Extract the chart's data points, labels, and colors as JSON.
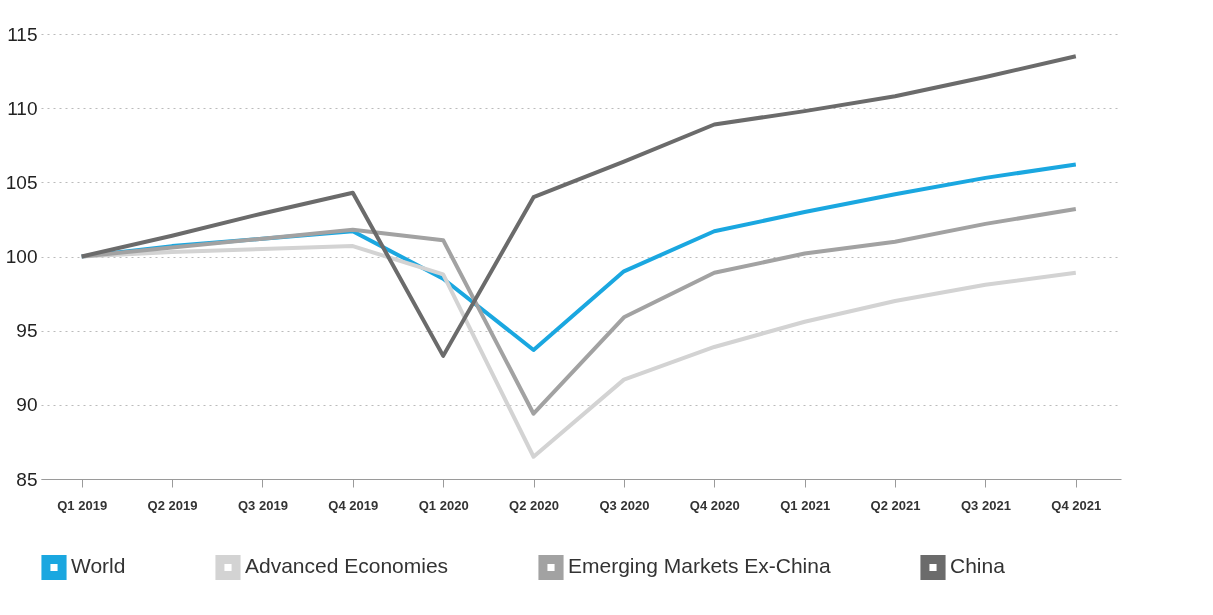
{
  "chart_data": {
    "type": "line",
    "categories": [
      "Q1 2019",
      "Q2 2019",
      "Q3 2019",
      "Q4 2019",
      "Q1 2020",
      "Q2 2020",
      "Q3 2020",
      "Q4 2020",
      "Q1 2021",
      "Q2 2021",
      "Q3 2021",
      "Q4 2021"
    ],
    "series": [
      {
        "name": "World",
        "color": "#1aa7e0",
        "values": [
          100,
          100.7,
          101.2,
          101.7,
          98.5,
          93.7,
          99,
          101.7,
          103,
          104.2,
          105.3,
          106.2
        ]
      },
      {
        "name": "Advanced Economies",
        "color": "#d3d3d3",
        "values": [
          100,
          100.3,
          100.5,
          100.7,
          98.8,
          86.5,
          91.7,
          93.9,
          95.6,
          97,
          98.1,
          98.9
        ]
      },
      {
        "name": "Emerging Markets Ex-China",
        "color": "#a2a2a2",
        "values": [
          100,
          100.6,
          101.2,
          101.8,
          101.1,
          89.4,
          95.9,
          98.9,
          100.2,
          101,
          102.2,
          103.2
        ]
      },
      {
        "name": "China",
        "color": "#6b6b6b",
        "values": [
          100,
          101.4,
          102.9,
          104.3,
          93.3,
          104,
          106.4,
          108.9,
          109.8,
          110.8,
          112.1,
          113.5
        ]
      }
    ],
    "ylim": [
      85,
      115
    ],
    "yticks": [
      85,
      90,
      95,
      100,
      105,
      110,
      115
    ],
    "grid": "y",
    "legend": "bottom left",
    "marker": "none",
    "line_style": "solid"
  }
}
